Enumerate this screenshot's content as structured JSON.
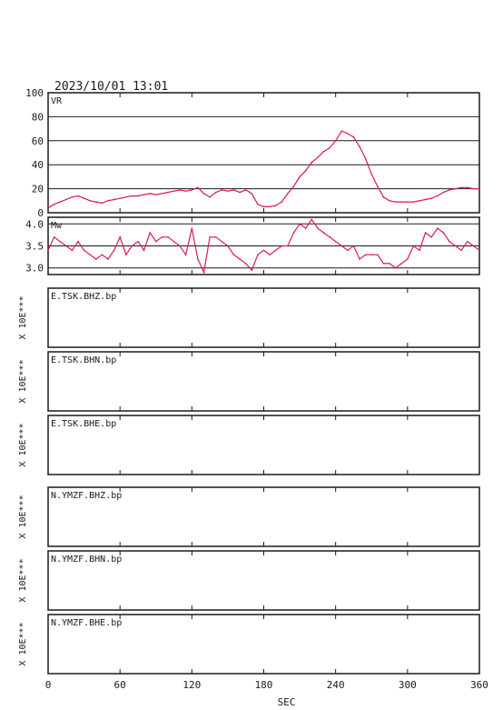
{
  "header": {
    "timestamp": "2023/10/01 13:01"
  },
  "chart_data": [
    {
      "type": "line",
      "label": "VR",
      "ylim": [
        0,
        100
      ],
      "yticks": [
        0,
        20,
        40,
        60,
        80,
        100
      ],
      "grid": true,
      "color": "#d81b4a",
      "x": [
        0,
        5,
        10,
        15,
        20,
        25,
        30,
        35,
        40,
        45,
        50,
        55,
        60,
        65,
        70,
        75,
        80,
        85,
        90,
        95,
        100,
        105,
        110,
        115,
        120,
        125,
        130,
        135,
        140,
        145,
        150,
        155,
        160,
        165,
        170,
        175,
        180,
        185,
        190,
        195,
        200,
        205,
        210,
        215,
        220,
        225,
        230,
        235,
        240,
        245,
        250,
        255,
        260,
        265,
        270,
        275,
        280,
        285,
        290,
        295,
        300,
        305,
        310,
        315,
        320,
        325,
        330,
        335,
        340,
        345,
        350,
        355,
        360
      ],
      "values": [
        4,
        7,
        9,
        11,
        13,
        14,
        12,
        10,
        9,
        8,
        10,
        11,
        12,
        13,
        14,
        14,
        15,
        16,
        15,
        16,
        17,
        18,
        19,
        18,
        19,
        21,
        16,
        13,
        17,
        19,
        18,
        19,
        17,
        19,
        16,
        7,
        5,
        5,
        6,
        9,
        16,
        22,
        30,
        35,
        42,
        46,
        51,
        54,
        60,
        68,
        66,
        63,
        55,
        45,
        32,
        22,
        13,
        10,
        9,
        9,
        9,
        9,
        10,
        11,
        12,
        14,
        17,
        19,
        20,
        21,
        21,
        20,
        20
      ]
    },
    {
      "type": "line",
      "label": "Mw",
      "ylim": [
        2.85,
        4.15
      ],
      "yticks": [
        3.0,
        3.5,
        4.0
      ],
      "grid": true,
      "color": "#d81b4a",
      "x": [
        0,
        5,
        10,
        15,
        20,
        25,
        30,
        35,
        40,
        45,
        50,
        55,
        60,
        65,
        70,
        75,
        80,
        85,
        90,
        95,
        100,
        105,
        110,
        115,
        120,
        125,
        130,
        135,
        140,
        145,
        150,
        155,
        160,
        165,
        170,
        175,
        180,
        185,
        190,
        195,
        200,
        205,
        210,
        215,
        220,
        225,
        230,
        235,
        240,
        245,
        250,
        255,
        260,
        265,
        270,
        275,
        280,
        285,
        290,
        295,
        300,
        305,
        310,
        315,
        320,
        325,
        330,
        335,
        340,
        345,
        350,
        355,
        360
      ],
      "values": [
        3.4,
        3.7,
        3.6,
        3.5,
        3.4,
        3.6,
        3.4,
        3.3,
        3.2,
        3.3,
        3.2,
        3.4,
        3.7,
        3.3,
        3.5,
        3.6,
        3.4,
        3.8,
        3.6,
        3.7,
        3.7,
        3.6,
        3.5,
        3.3,
        3.9,
        3.2,
        2.9,
        3.7,
        3.7,
        3.6,
        3.5,
        3.3,
        3.2,
        3.1,
        2.95,
        3.3,
        3.4,
        3.3,
        3.4,
        3.5,
        3.5,
        3.8,
        4.0,
        3.9,
        4.1,
        3.9,
        3.8,
        3.7,
        3.6,
        3.5,
        3.4,
        3.5,
        3.2,
        3.3,
        3.3,
        3.3,
        3.1,
        3.1,
        3.0,
        3.1,
        3.2,
        3.5,
        3.4,
        3.8,
        3.7,
        3.9,
        3.8,
        3.6,
        3.5,
        3.4,
        3.6,
        3.5,
        3.4
      ]
    }
  ],
  "traces": [
    {
      "label": "E.TSK.BHZ.bp",
      "unit_label": "X 10E***"
    },
    {
      "label": "E.TSK.BHN.bp",
      "unit_label": "X 10E***"
    },
    {
      "label": "E.TSK.BHE.bp",
      "unit_label": "X 10E***"
    },
    {
      "label": "N.YMZF.BHZ.bp",
      "unit_label": "X 10E***"
    },
    {
      "label": "N.YMZF.BHN.bp",
      "unit_label": "X 10E***"
    },
    {
      "label": "N.YMZF.BHE.bp",
      "unit_label": "X 10E***"
    }
  ],
  "x_axis": {
    "label": "SEC",
    "range": [
      0,
      360
    ],
    "ticks": [
      0,
      60,
      120,
      180,
      240,
      300,
      360
    ]
  }
}
